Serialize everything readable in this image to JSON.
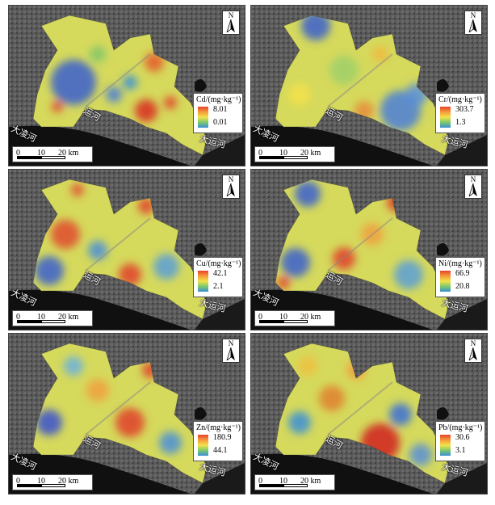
{
  "north_label": "N",
  "panels": [
    {
      "element": "Cd",
      "unit_label": "Cd/(mg·kg⁻¹)",
      "max": "8.01",
      "min": "0.01"
    },
    {
      "element": "Cr",
      "unit_label": "Cr/(mg·kg⁻¹)",
      "max": "303.7",
      "min": "1.3"
    },
    {
      "element": "Cu",
      "unit_label": "Cu/(mg·kg⁻¹)",
      "max": "42.1",
      "min": "2.1"
    },
    {
      "element": "Ni",
      "unit_label": "Ni/(mg·kg⁻¹)",
      "max": "66.9",
      "min": "20.8"
    },
    {
      "element": "Zn",
      "unit_label": "Zn/(mg·kg⁻¹)",
      "max": "180.9",
      "min": "44.1"
    },
    {
      "element": "Pb",
      "unit_label": "Pb/(mg·kg⁻¹)",
      "max": "30.6",
      "min": "3.1"
    }
  ],
  "scale": {
    "t0": "0",
    "t1": "10",
    "t2": "20 km"
  },
  "rivers": {
    "dalinghe": "大凌河",
    "yunhe": "运河",
    "dayunhe": "大运河"
  },
  "colors": {
    "high": "#e8412a",
    "mid": "#f3e24a",
    "low": "#3a8fd8"
  }
}
